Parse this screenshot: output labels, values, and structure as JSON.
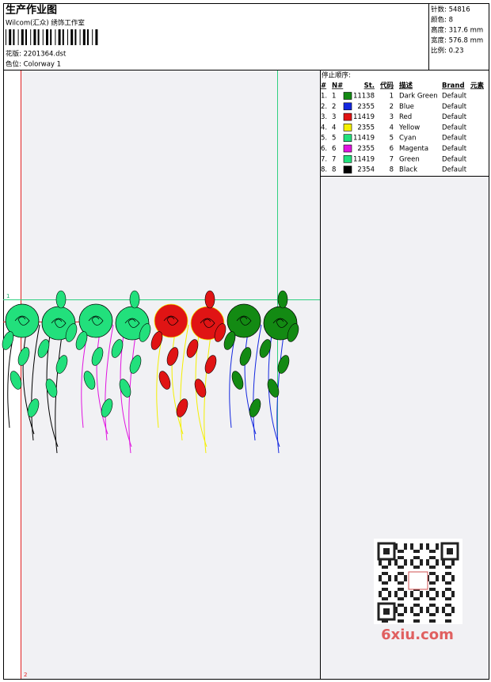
{
  "header": {
    "title": "生产作业图",
    "studio": "Wilcom(汇众) 绣饰工作室",
    "design": "花版: 2201364.dst",
    "colorway": "色位: Colorway 1"
  },
  "info": [
    "针数: 54816",
    "颜色: 8",
    "高度: 317.6 mm",
    "宽度: 576.8 mm",
    "比例: 0.23"
  ],
  "stop_sequence": {
    "title": "停止顺序:",
    "columns": [
      "#",
      "N#",
      "St.",
      "代码",
      "描述",
      "Brand",
      "元素"
    ],
    "rows": [
      {
        "index": "1.",
        "n": 1,
        "color": "#138a13",
        "stitches": 11138,
        "code": 1,
        "description": "Dark Green",
        "brand": "Default"
      },
      {
        "index": "2.",
        "n": 2,
        "color": "#1428e0",
        "stitches": 2355,
        "code": 2,
        "description": "Blue",
        "brand": "Default"
      },
      {
        "index": "3.",
        "n": 3,
        "color": "#e01414",
        "stitches": 11419,
        "code": 3,
        "description": "Red",
        "brand": "Default"
      },
      {
        "index": "4.",
        "n": 4,
        "color": "#f4f000",
        "stitches": 2355,
        "code": 4,
        "description": "Yellow",
        "brand": "Default"
      },
      {
        "index": "5.",
        "n": 5,
        "color": "#22e07c",
        "stitches": 11419,
        "code": 5,
        "description": "Cyan",
        "brand": "Default"
      },
      {
        "index": "6.",
        "n": 6,
        "color": "#e014e0",
        "stitches": 2355,
        "code": 6,
        "description": "Magenta",
        "brand": "Default"
      },
      {
        "index": "7.",
        "n": 7,
        "color": "#22e07c",
        "stitches": 11419,
        "code": 7,
        "description": "Green",
        "brand": "Default"
      },
      {
        "index": "8.",
        "n": 8,
        "color": "#000000",
        "stitches": 2354,
        "code": 8,
        "description": "Black",
        "brand": "Default"
      }
    ]
  },
  "guides": [
    "1",
    "2"
  ],
  "watermark": "6xiu.com"
}
